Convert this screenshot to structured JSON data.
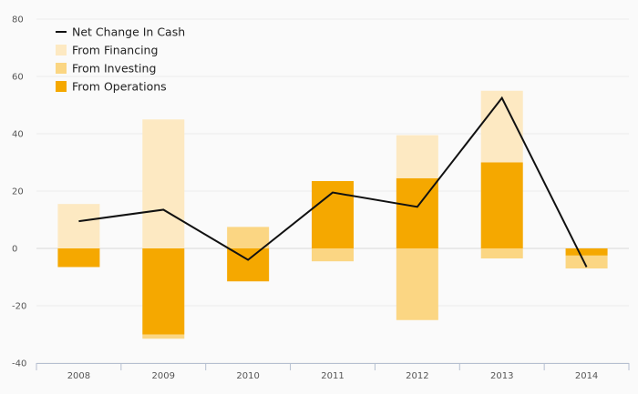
{
  "chart_data": {
    "type": "bar",
    "categories": [
      "2008",
      "2009",
      "2010",
      "2011",
      "2012",
      "2013",
      "2014"
    ],
    "series": [
      {
        "name": "From Operations",
        "kind": "bar",
        "color": "#f5a800",
        "values": [
          -6.5,
          -30,
          -11.5,
          23.5,
          24.5,
          30,
          -2.5
        ]
      },
      {
        "name": "From Investing",
        "kind": "bar",
        "color": "#fbd683",
        "values": [
          0,
          -1.5,
          7.5,
          -4.5,
          -25,
          -3.5,
          -4.5
        ]
      },
      {
        "name": "From Financing",
        "kind": "bar",
        "color": "#fde9c2",
        "values": [
          15.5,
          45,
          0,
          0,
          15,
          25,
          0
        ]
      },
      {
        "name": "Net Change In Cash",
        "kind": "line",
        "color": "#111111",
        "values": [
          9.5,
          13.5,
          -4,
          19.5,
          14.5,
          52.5,
          -6.5
        ]
      }
    ],
    "legend": [
      "Net Change In Cash",
      "From Financing",
      "From Investing",
      "From Operations"
    ],
    "legend_position": "top-left",
    "stacked": true,
    "ylim": [
      -40,
      80
    ],
    "yticks": [
      -40,
      -20,
      0,
      20,
      40,
      60,
      80
    ],
    "grid": true,
    "title": "",
    "xlabel": "",
    "ylabel": ""
  }
}
